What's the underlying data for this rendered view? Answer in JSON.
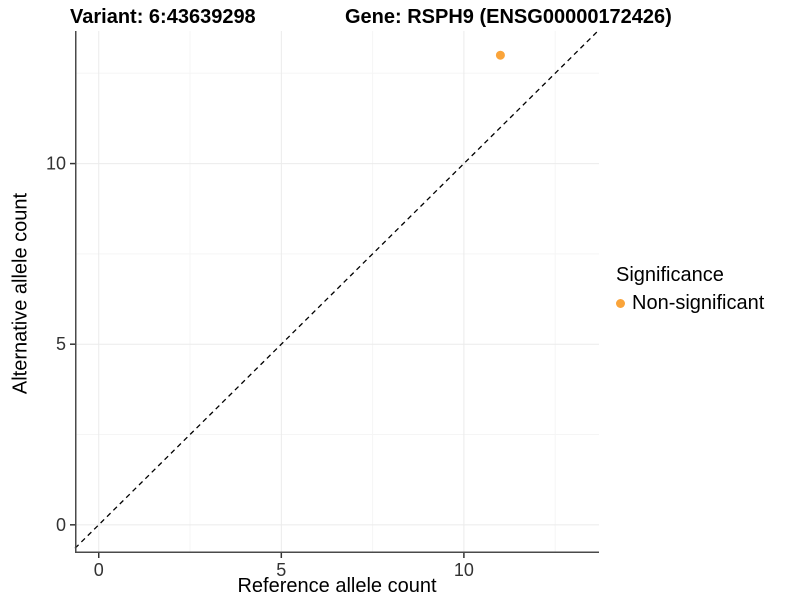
{
  "header": {
    "variant_title": "Variant: 6:43639298",
    "gene_title": "Gene: RSPH9 (ENSG00000172426)"
  },
  "chart_data": {
    "type": "scatter",
    "xlabel": "Reference allele count",
    "ylabel": "Alternative allele count",
    "xlim": [
      -0.65,
      13.7
    ],
    "ylim": [
      -0.78,
      13.67
    ],
    "x_ticks": [
      0,
      5,
      10
    ],
    "y_ticks": [
      0,
      5,
      10
    ],
    "x_minor_ticks": [
      2.5,
      7.5,
      12.5
    ],
    "y_minor_ticks": [
      2.5,
      7.5,
      12.5
    ],
    "grid": true,
    "series": [
      {
        "name": "Non-significant",
        "color": "#FAA43A",
        "points": [
          {
            "x": 11,
            "y": 13
          }
        ]
      }
    ],
    "reference_line": {
      "type": "identity-diagonal",
      "style": "dashed",
      "color": "#000000"
    },
    "legend": {
      "title": "Significance",
      "position": "right",
      "entries": [
        {
          "label": "Non-significant",
          "color": "#FAA43A"
        }
      ]
    },
    "colors": {
      "axis_line": "#4a4a4a",
      "major_grid": "#ebebeb",
      "minor_grid": "#f5f5f5",
      "tick_mark": "#333333",
      "tick_text": "#333333"
    }
  }
}
